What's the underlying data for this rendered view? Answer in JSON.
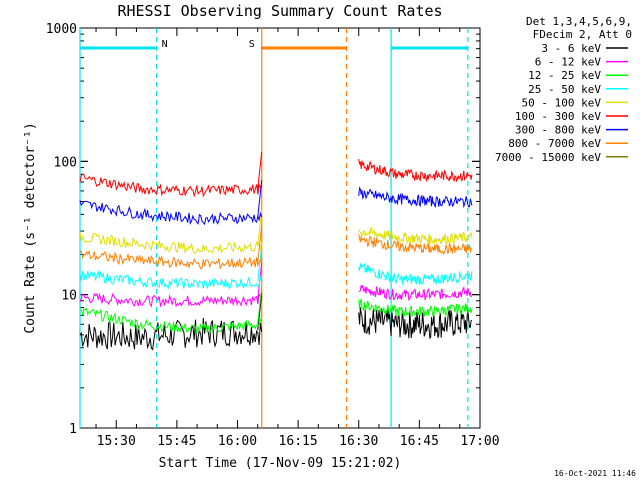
{
  "title": "RHESSI Observing Summary Count Rates",
  "footer_date": "16-Oct-2021 11:46",
  "chart_data": {
    "type": "line",
    "title": "RHESSI Observing Summary Count Rates",
    "xlabel": "Start Time (17-Nov-09 15:21:02)",
    "ylabel": "Count Rate (s⁻¹ detector⁻¹)",
    "y_scale": "log",
    "ylim": [
      1,
      1000
    ],
    "xlim": [
      "15:21:02",
      "17:00"
    ],
    "x_ticks": [
      "15:30",
      "15:45",
      "16:00",
      "16:15",
      "16:30",
      "16:45",
      "17:00"
    ],
    "y_ticks": [
      "1",
      "10",
      "100",
      "1000"
    ],
    "legend_header": [
      "Det 1,3,4,5,6,9,",
      "FDecim 2, Att 0"
    ],
    "legend_position": "right",
    "series": [
      {
        "name": "3 - 6 keV",
        "color": "#000000",
        "values": [
          5,
          4.8,
          5.2,
          5.4
        ],
        "segment_before": [
          5,
          4.8,
          6
        ],
        "segment_after": [
          5.6,
          5.8,
          6.2,
          6.0
        ]
      },
      {
        "name": "6 - 12 keV",
        "color": "#ff00ff",
        "values": [
          9.5,
          9.0,
          9.0,
          9.2
        ]
      },
      {
        "name": "12 - 25 keV",
        "color": "#00ff00",
        "values": [
          7.5,
          6.0,
          5.5,
          6.0
        ]
      },
      {
        "name": "25 - 50 keV",
        "color": "#00ffff",
        "values": [
          14,
          12.5,
          12,
          12.5
        ]
      },
      {
        "name": "50 - 100 keV",
        "color": "#e0e000",
        "values": [
          27,
          24,
          22,
          23
        ]
      },
      {
        "name": "100 - 300 keV",
        "color": "#ff0000",
        "values": [
          75,
          62,
          60,
          62
        ]
      },
      {
        "name": "300 - 800 keV",
        "color": "#0000ff",
        "values": [
          48,
          40,
          37,
          38
        ]
      },
      {
        "name": "800 - 7000 keV",
        "color": "#ff8000",
        "values": [
          20,
          18,
          17,
          17.5
        ]
      },
      {
        "name": "7000 - 15000 keV",
        "color": "#808000",
        "values": []
      }
    ],
    "series_after_gap": {
      "100 - 300 keV": [
        95,
        80,
        78,
        78
      ],
      "300 - 800 keV": [
        58,
        52,
        50,
        50
      ],
      "50 - 100 keV": [
        30,
        27,
        26,
        27
      ],
      "800 - 7000 keV": [
        26,
        23,
        22,
        22
      ],
      "25 - 50 keV": [
        16,
        13,
        13,
        14
      ],
      "6 - 12 keV": [
        11,
        10,
        10,
        10.5
      ],
      "12 - 25 keV": [
        8.5,
        7.5,
        7.5,
        8
      ],
      "3 - 6 keV": [
        6.5,
        6,
        6,
        6.2
      ]
    },
    "flags": [
      {
        "label": "N",
        "color": "#00e5ee",
        "from": "15:21:02",
        "to": "15:40"
      },
      {
        "label": "S",
        "color": "#ff8000",
        "from": "16:06",
        "to": "16:27"
      },
      {
        "label": "",
        "color": "#00e5ee",
        "from": "16:38",
        "to": "16:57"
      }
    ]
  }
}
